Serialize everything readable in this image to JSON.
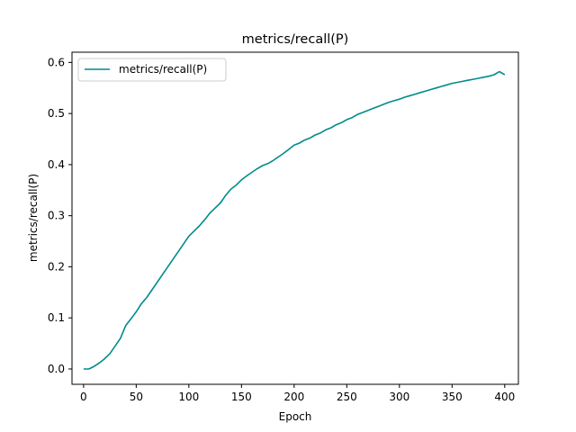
{
  "chart_data": {
    "type": "line",
    "title": "metrics/recall(P)",
    "xlabel": "Epoch",
    "ylabel": "metrics/recall(P)",
    "xlim": [
      -11,
      413
    ],
    "ylim": [
      -0.03,
      0.62
    ],
    "xticks": [
      0,
      50,
      100,
      150,
      200,
      250,
      300,
      350,
      400
    ],
    "yticks": [
      0.0,
      0.1,
      0.2,
      0.3,
      0.4,
      0.5,
      0.6
    ],
    "ytick_labels": [
      "0.0",
      "0.1",
      "0.2",
      "0.3",
      "0.4",
      "0.5",
      "0.6"
    ],
    "grid": false,
    "legend": "top-left",
    "series": [
      {
        "name": "metrics/recall(P)",
        "color": "#008b8b",
        "x": [
          0,
          5,
          10,
          15,
          20,
          25,
          30,
          35,
          40,
          45,
          50,
          55,
          60,
          65,
          70,
          75,
          80,
          85,
          90,
          95,
          100,
          105,
          110,
          115,
          120,
          125,
          130,
          135,
          140,
          145,
          150,
          155,
          160,
          165,
          170,
          175,
          180,
          185,
          190,
          195,
          200,
          205,
          210,
          215,
          220,
          225,
          230,
          235,
          240,
          245,
          250,
          255,
          260,
          265,
          270,
          275,
          280,
          285,
          290,
          295,
          300,
          305,
          310,
          315,
          320,
          325,
          330,
          335,
          340,
          345,
          350,
          355,
          360,
          365,
          370,
          375,
          380,
          385,
          390,
          395,
          400
        ],
        "y": [
          0.0,
          0.0,
          0.005,
          0.012,
          0.02,
          0.03,
          0.045,
          0.06,
          0.085,
          0.098,
          0.112,
          0.128,
          0.14,
          0.155,
          0.17,
          0.185,
          0.2,
          0.215,
          0.23,
          0.245,
          0.26,
          0.27,
          0.28,
          0.292,
          0.305,
          0.315,
          0.325,
          0.34,
          0.352,
          0.36,
          0.37,
          0.378,
          0.385,
          0.392,
          0.398,
          0.402,
          0.408,
          0.415,
          0.422,
          0.43,
          0.438,
          0.442,
          0.448,
          0.452,
          0.458,
          0.462,
          0.468,
          0.472,
          0.478,
          0.482,
          0.488,
          0.492,
          0.498,
          0.502,
          0.506,
          0.51,
          0.514,
          0.518,
          0.522,
          0.525,
          0.528,
          0.532,
          0.535,
          0.538,
          0.541,
          0.544,
          0.547,
          0.55,
          0.553,
          0.556,
          0.559,
          0.561,
          0.563,
          0.565,
          0.567,
          0.569,
          0.571,
          0.573,
          0.576,
          0.582,
          0.576
        ]
      }
    ]
  }
}
